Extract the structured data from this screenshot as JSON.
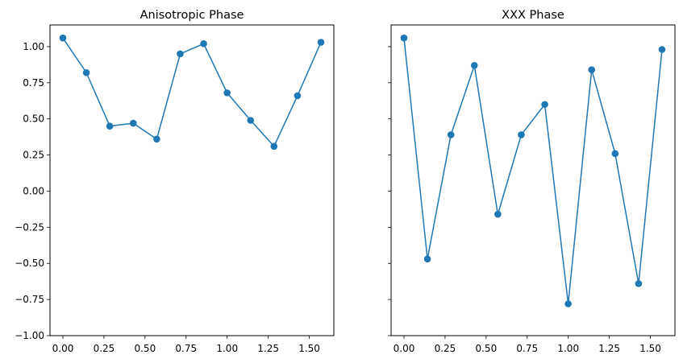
{
  "chart_data": [
    {
      "type": "line",
      "title": "Anisotropic Phase",
      "xlabel": "",
      "ylabel": "",
      "xlim": [
        -0.0785,
        1.6493
      ],
      "ylim": [
        -1.0,
        1.15
      ],
      "xticks": [
        "0.00",
        "0.25",
        "0.50",
        "0.75",
        "1.00",
        "1.25",
        "1.50"
      ],
      "yticks": [
        "-1.00",
        "-0.75",
        "-0.50",
        "-0.25",
        "0.00",
        "0.25",
        "0.50",
        "0.75",
        "1.00"
      ],
      "grid": false,
      "marker": "circle",
      "color": "#1f77b4",
      "x": [
        0.0,
        0.1428,
        0.2856,
        0.4284,
        0.5712,
        0.714,
        0.8568,
        0.9996,
        1.1424,
        1.2852,
        1.428,
        1.5708
      ],
      "y": [
        1.06,
        0.82,
        0.45,
        0.47,
        0.36,
        0.95,
        1.02,
        0.68,
        0.49,
        0.31,
        0.66,
        1.03
      ]
    },
    {
      "type": "line",
      "title": "XXX Phase",
      "xlabel": "",
      "ylabel": "",
      "xlim": [
        -0.0785,
        1.6493
      ],
      "ylim": [
        -1.0,
        1.15
      ],
      "xticks": [
        "0.00",
        "0.25",
        "0.50",
        "0.75",
        "1.00",
        "1.25",
        "1.50"
      ],
      "yticks_shared": true,
      "grid": false,
      "marker": "circle",
      "color": "#1f77b4",
      "x": [
        0.0,
        0.1428,
        0.2856,
        0.4284,
        0.5712,
        0.714,
        0.8568,
        0.9996,
        1.1424,
        1.2852,
        1.428,
        1.5708
      ],
      "y": [
        1.06,
        -0.47,
        0.39,
        0.87,
        -0.16,
        0.39,
        0.6,
        -0.78,
        0.84,
        0.26,
        -0.64,
        0.98
      ]
    }
  ]
}
